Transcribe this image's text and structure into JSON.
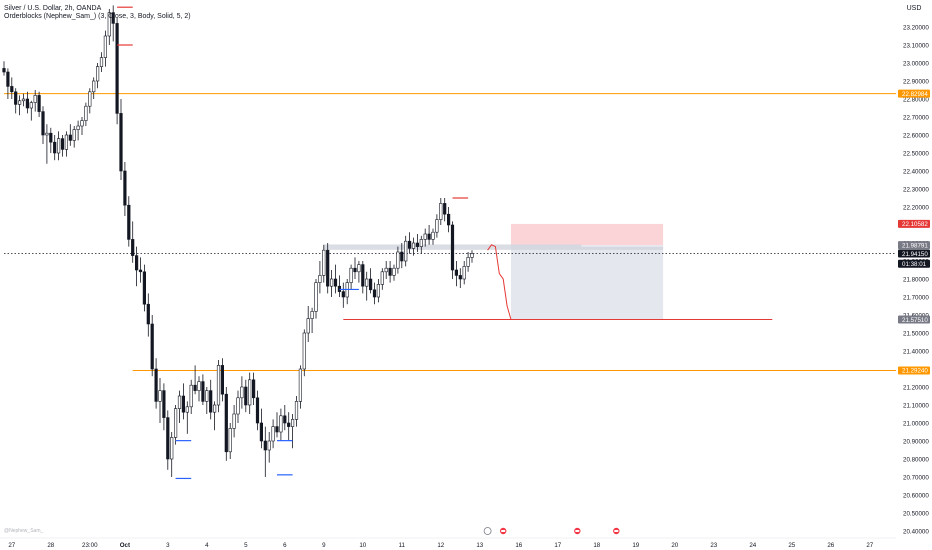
{
  "legend": {
    "title": "Silver / U.S. Dollar, 2h, OANDA",
    "indicator": "Orderblocks (Nephew_Sam_) (3, Close, 3, Body, Solid, 5, 2)"
  },
  "currency": "USD",
  "watermark": "@Nephew_Sam_",
  "colors": {
    "up": "#ffffff",
    "down": "#131722",
    "wick": "#131722",
    "orange_level": "#ff9800",
    "red_line": "#e53935",
    "target_zone": "#f8c6c9",
    "risk_zone": "#e0e3eb",
    "orderblock": "#d1d4dc",
    "support_ob": "#2962ff",
    "last_price_bg": "#131722",
    "grid_text": "#131722"
  },
  "chart_data": {
    "type": "candlestick",
    "symbol": "Silver / U.S. Dollar",
    "timeframe": "2h",
    "exchange": "OANDA",
    "y_axis": {
      "range": [
        20.36,
        23.34
      ],
      "ticks": [
        "23.20000",
        "23.10000",
        "23.00000",
        "22.90000",
        "22.80000",
        "22.70000",
        "22.60000",
        "22.50000",
        "22.40000",
        "22.30000",
        "22.20000",
        "22.10000",
        "22.00000",
        "21.90000",
        "21.80000",
        "21.70000",
        "21.60000",
        "21.50000",
        "21.40000",
        "21.30000",
        "21.20000",
        "21.10000",
        "21.00000",
        "20.90000",
        "20.80000",
        "20.70000",
        "20.60000",
        "20.50000",
        "20.40000"
      ]
    },
    "x_axis": {
      "ticks": [
        {
          "label": "27",
          "idx": 2
        },
        {
          "label": "28",
          "idx": 12
        },
        {
          "label": "23:00",
          "idx": 22
        },
        {
          "label": "Oct",
          "idx": 31
        },
        {
          "label": "3",
          "idx": 42
        },
        {
          "label": "4",
          "idx": 52
        },
        {
          "label": "5",
          "idx": 62
        },
        {
          "label": "6",
          "idx": 72
        },
        {
          "label": "9",
          "idx": 82
        },
        {
          "label": "10",
          "idx": 92
        },
        {
          "label": "11",
          "idx": 102
        },
        {
          "label": "12",
          "idx": 112
        },
        {
          "label": "13",
          "idx": 122
        },
        {
          "label": "16",
          "idx": 132
        },
        {
          "label": "17",
          "idx": 142
        },
        {
          "label": "18",
          "idx": 152
        },
        {
          "label": "19",
          "idx": 162
        },
        {
          "label": "20",
          "idx": 172
        },
        {
          "label": "23",
          "idx": 182
        },
        {
          "label": "24",
          "idx": 192
        },
        {
          "label": "25",
          "idx": 202
        },
        {
          "label": "26",
          "idx": 212
        },
        {
          "label": "27",
          "idx": 222
        }
      ]
    },
    "price_labels": [
      {
        "text": "22.82984",
        "price": 22.83,
        "color": "#ff9800"
      },
      {
        "text": "22.10582",
        "price": 22.106,
        "color": "#e53935"
      },
      {
        "text": "21.98791",
        "price": 21.988,
        "color": "#787b86"
      },
      {
        "text": "21.94150",
        "price": 21.9415,
        "color": "#131722"
      },
      {
        "text": "01:38:01",
        "price": 21.885,
        "color": "#131722"
      },
      {
        "text": "21.57510",
        "price": 21.575,
        "color": "#787b86"
      },
      {
        "text": "21.29240",
        "price": 21.292,
        "color": "#ff9800"
      }
    ],
    "levels": [
      {
        "price": 22.83,
        "from_idx": 0,
        "color": "#ff9800"
      },
      {
        "price": 21.292,
        "from_idx": 33,
        "color": "#ff9800"
      },
      {
        "price": 21.575,
        "from_idx": 87,
        "to_idx": 197,
        "color": "#e53935"
      },
      {
        "price": 21.9415,
        "from_idx": 0,
        "color": "#131722",
        "dotted": true
      }
    ],
    "position": {
      "entry": 21.988,
      "target": 22.106,
      "stop": 21.575,
      "from_idx": 130,
      "to_idx": 169
    },
    "orderblocks": [
      {
        "top": 21.992,
        "bottom": 21.962,
        "from_idx": 82,
        "to_idx": 148,
        "color": "#d1d4dc"
      },
      {
        "top": 21.978,
        "bottom": 21.962,
        "from_idx": 148,
        "to_idx": 169,
        "color": "#d1d4dc"
      }
    ],
    "support_marks": [
      {
        "price": 20.692,
        "from_idx": 44,
        "to_idx": 48
      },
      {
        "price": 20.902,
        "from_idx": 44,
        "to_idx": 48
      },
      {
        "price": 20.712,
        "from_idx": 70,
        "to_idx": 74
      },
      {
        "price": 20.902,
        "from_idx": 70,
        "to_idx": 74
      },
      {
        "price": 21.742,
        "from_idx": 86,
        "to_idx": 91
      }
    ],
    "resistance_marks": [
      {
        "price": 23.31,
        "from_idx": 29,
        "to_idx": 33
      },
      {
        "price": 23.1,
        "from_idx": 29,
        "to_idx": 33
      },
      {
        "price": 22.25,
        "from_idx": 115,
        "to_idx": 119
      }
    ],
    "projection": [
      [
        124,
        21.96
      ],
      [
        125,
        21.99
      ],
      [
        126,
        21.98
      ],
      [
        127,
        21.83
      ],
      [
        128,
        21.8
      ],
      [
        129,
        21.65
      ],
      [
        130,
        21.575
      ]
    ],
    "event_icons": [
      {
        "idx": 124,
        "kind": "dividend"
      },
      {
        "idx": 128,
        "kind": "flag-us"
      },
      {
        "idx": 147,
        "kind": "flag-us"
      },
      {
        "idx": 157,
        "kind": "flag-us"
      }
    ],
    "candles": [
      [
        22.97,
        23.01,
        22.93,
        22.95
      ],
      [
        22.95,
        22.97,
        22.8,
        22.87
      ],
      [
        22.87,
        22.92,
        22.8,
        22.84
      ],
      [
        22.84,
        22.86,
        22.72,
        22.77
      ],
      [
        22.77,
        22.82,
        22.71,
        22.79
      ],
      [
        22.79,
        22.83,
        22.76,
        22.8
      ],
      [
        22.8,
        22.84,
        22.72,
        22.75
      ],
      [
        22.75,
        22.79,
        22.68,
        22.78
      ],
      [
        22.78,
        22.85,
        22.73,
        22.82
      ],
      [
        22.82,
        22.84,
        22.7,
        22.73
      ],
      [
        22.73,
        22.76,
        22.55,
        22.6
      ],
      [
        22.6,
        22.66,
        22.44,
        22.61
      ],
      [
        22.61,
        22.64,
        22.5,
        22.56
      ],
      [
        22.56,
        22.6,
        22.46,
        22.5
      ],
      [
        22.5,
        22.62,
        22.46,
        22.58
      ],
      [
        22.58,
        22.6,
        22.48,
        22.52
      ],
      [
        22.52,
        22.62,
        22.48,
        22.6
      ],
      [
        22.6,
        22.66,
        22.54,
        22.57
      ],
      [
        22.57,
        22.65,
        22.53,
        22.63
      ],
      [
        22.63,
        22.68,
        22.57,
        22.65
      ],
      [
        22.65,
        22.7,
        22.6,
        22.68
      ],
      [
        22.68,
        22.78,
        22.65,
        22.76
      ],
      [
        22.76,
        22.86,
        22.72,
        22.84
      ],
      [
        22.84,
        22.92,
        22.8,
        22.9
      ],
      [
        22.9,
        23.0,
        22.86,
        22.98
      ],
      [
        22.98,
        23.06,
        22.95,
        23.03
      ],
      [
        23.03,
        23.18,
        22.98,
        23.15
      ],
      [
        23.15,
        23.3,
        23.1,
        23.28
      ],
      [
        23.28,
        23.32,
        23.12,
        23.22
      ],
      [
        23.22,
        23.25,
        22.66,
        22.72
      ],
      [
        22.72,
        22.8,
        22.35,
        22.4
      ],
      [
        22.4,
        22.45,
        22.15,
        22.21
      ],
      [
        22.21,
        22.26,
        21.98,
        22.02
      ],
      [
        22.02,
        22.12,
        21.89,
        21.93
      ],
      [
        21.93,
        21.98,
        21.76,
        21.85
      ],
      [
        21.85,
        21.92,
        21.78,
        21.84
      ],
      [
        21.84,
        21.88,
        21.62,
        21.66
      ],
      [
        21.66,
        21.72,
        21.48,
        21.55
      ],
      [
        21.55,
        21.6,
        21.26,
        21.3
      ],
      [
        21.3,
        21.36,
        21.08,
        21.12
      ],
      [
        21.12,
        21.25,
        21.0,
        21.18
      ],
      [
        21.18,
        21.22,
        20.96,
        21.03
      ],
      [
        21.03,
        21.07,
        20.74,
        20.8
      ],
      [
        20.8,
        20.95,
        20.7,
        20.92
      ],
      [
        20.92,
        21.1,
        20.88,
        21.08
      ],
      [
        21.08,
        21.18,
        21.0,
        21.15
      ],
      [
        21.15,
        21.22,
        21.02,
        21.06
      ],
      [
        21.06,
        21.12,
        20.94,
        21.09
      ],
      [
        21.09,
        21.24,
        21.05,
        21.21
      ],
      [
        21.21,
        21.32,
        21.16,
        21.18
      ],
      [
        21.18,
        21.26,
        21.12,
        21.23
      ],
      [
        21.23,
        21.27,
        21.1,
        21.12
      ],
      [
        21.12,
        21.2,
        21.05,
        21.18
      ],
      [
        21.18,
        21.24,
        21.02,
        21.06
      ],
      [
        21.06,
        21.12,
        20.96,
        21.1
      ],
      [
        21.1,
        21.35,
        21.06,
        21.32
      ],
      [
        21.32,
        21.36,
        21.12,
        21.16
      ],
      [
        21.16,
        21.2,
        20.79,
        20.84
      ],
      [
        20.84,
        21.0,
        20.8,
        20.97
      ],
      [
        20.97,
        21.1,
        20.92,
        21.05
      ],
      [
        21.05,
        21.18,
        21.0,
        21.14
      ],
      [
        21.14,
        21.26,
        21.08,
        21.2
      ],
      [
        21.2,
        21.24,
        21.06,
        21.1
      ],
      [
        21.1,
        21.28,
        21.05,
        21.24
      ],
      [
        21.24,
        21.28,
        21.1,
        21.14
      ],
      [
        21.14,
        21.18,
        20.96,
        21.0
      ],
      [
        21.0,
        21.08,
        20.86,
        20.9
      ],
      [
        20.9,
        20.98,
        20.7,
        20.85
      ],
      [
        20.85,
        20.95,
        20.78,
        20.9
      ],
      [
        20.9,
        21.02,
        20.86,
        20.98
      ],
      [
        20.98,
        21.06,
        20.92,
        20.95
      ],
      [
        20.95,
        21.08,
        20.9,
        21.04
      ],
      [
        21.04,
        21.1,
        20.96,
        21.0
      ],
      [
        21.0,
        21.06,
        20.9,
        20.98
      ],
      [
        20.98,
        21.05,
        20.86,
        21.02
      ],
      [
        21.02,
        21.15,
        20.98,
        21.12
      ],
      [
        21.12,
        21.32,
        21.08,
        21.3
      ],
      [
        21.3,
        21.52,
        21.26,
        21.5
      ],
      [
        21.5,
        21.65,
        21.45,
        21.58
      ],
      [
        21.58,
        21.64,
        21.5,
        21.62
      ],
      [
        21.62,
        21.8,
        21.58,
        21.78
      ],
      [
        21.78,
        21.9,
        21.72,
        21.82
      ],
      [
        21.82,
        21.99,
        21.78,
        21.96
      ],
      [
        21.96,
        22.0,
        21.72,
        21.76
      ],
      [
        21.76,
        21.85,
        21.7,
        21.8
      ],
      [
        21.8,
        21.88,
        21.72,
        21.76
      ],
      [
        21.76,
        21.82,
        21.7,
        21.73
      ],
      [
        21.73,
        21.78,
        21.64,
        21.7
      ],
      [
        21.7,
        21.8,
        21.66,
        21.78
      ],
      [
        21.78,
        21.88,
        21.74,
        21.86
      ],
      [
        21.86,
        21.92,
        21.8,
        21.84
      ],
      [
        21.84,
        21.9,
        21.78,
        21.88
      ],
      [
        21.88,
        21.9,
        21.72,
        21.76
      ],
      [
        21.76,
        21.84,
        21.68,
        21.8
      ],
      [
        21.8,
        21.86,
        21.72,
        21.74
      ],
      [
        21.74,
        21.78,
        21.66,
        21.7
      ],
      [
        21.7,
        21.8,
        21.67,
        21.77
      ],
      [
        21.77,
        21.86,
        21.74,
        21.84
      ],
      [
        21.84,
        21.9,
        21.8,
        21.86
      ],
      [
        21.86,
        21.9,
        21.78,
        21.82
      ],
      [
        21.82,
        21.88,
        21.79,
        21.86
      ],
      [
        21.86,
        21.98,
        21.83,
        21.95
      ],
      [
        21.95,
        22.0,
        21.86,
        21.9
      ],
      [
        21.9,
        22.04,
        21.87,
        22.01
      ],
      [
        22.01,
        22.06,
        21.94,
        21.97
      ],
      [
        21.97,
        22.03,
        21.93,
        22.0
      ],
      [
        22.0,
        22.05,
        21.95,
        21.98
      ],
      [
        21.98,
        22.04,
        21.94,
        22.02
      ],
      [
        22.02,
        22.08,
        21.98,
        22.05
      ],
      [
        22.05,
        22.1,
        21.99,
        22.02
      ],
      [
        22.02,
        22.08,
        21.99,
        22.06
      ],
      [
        22.06,
        22.16,
        22.03,
        22.13
      ],
      [
        22.13,
        22.25,
        22.1,
        22.22
      ],
      [
        22.22,
        22.25,
        22.12,
        22.16
      ],
      [
        22.16,
        22.2,
        22.06,
        22.1
      ],
      [
        22.1,
        22.12,
        21.8,
        21.85
      ],
      [
        21.85,
        21.9,
        21.76,
        21.82
      ],
      [
        21.82,
        21.86,
        21.75,
        21.8
      ],
      [
        21.8,
        21.9,
        21.77,
        21.87
      ],
      [
        21.87,
        21.95,
        21.84,
        21.92
      ],
      [
        21.92,
        21.96,
        21.89,
        21.94
      ]
    ]
  }
}
